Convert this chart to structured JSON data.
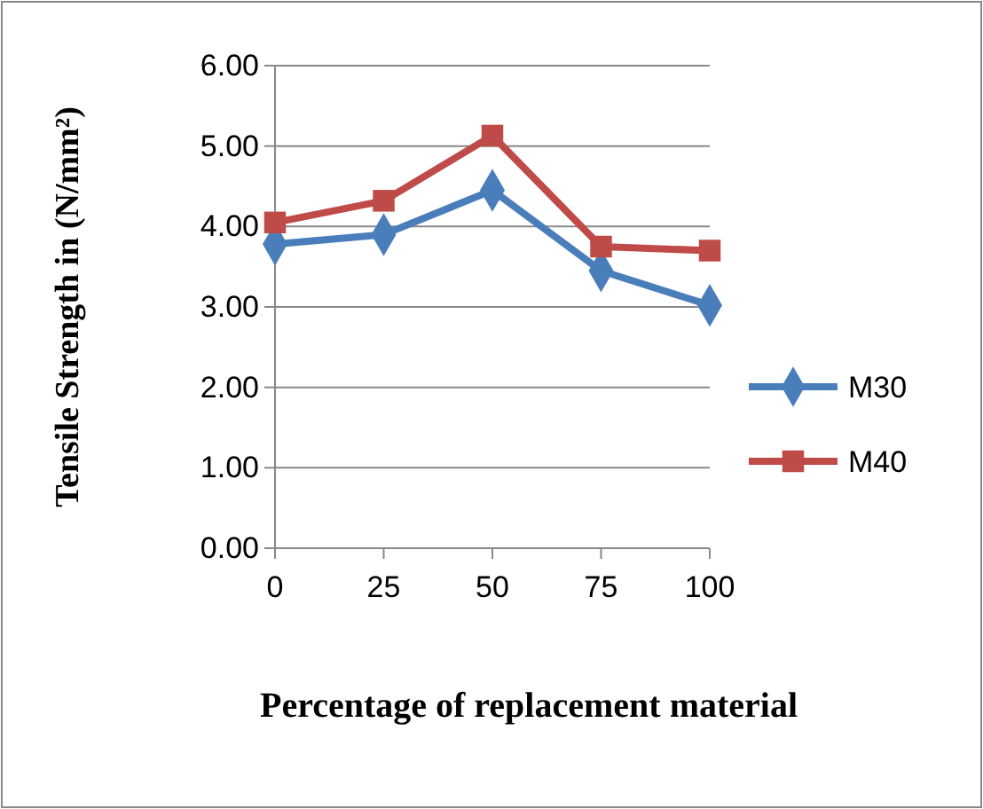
{
  "chart_data": {
    "type": "line",
    "xlabel": "Percentage of replacement material",
    "ylabel": "Tensile Strength in (N/mm²)",
    "x": [
      0,
      25,
      50,
      75,
      100
    ],
    "xlim": [
      0,
      100
    ],
    "xticks": [
      0,
      25,
      50,
      75,
      100
    ],
    "ylim": [
      0,
      6
    ],
    "yticks": [
      {
        "value": 0,
        "label": "0.00"
      },
      {
        "value": 1,
        "label": "1.00"
      },
      {
        "value": 2,
        "label": "2.00"
      },
      {
        "value": 3,
        "label": "3.00"
      },
      {
        "value": 4,
        "label": "4.00"
      },
      {
        "value": 5,
        "label": "5.00"
      },
      {
        "value": 6,
        "label": "6.00"
      }
    ],
    "grid": "y",
    "legend": "right",
    "line_style": "solid",
    "series": [
      {
        "name": "M30",
        "color": "#4a7ebb",
        "marker": "diamond",
        "values": [
          3.78,
          3.9,
          4.45,
          3.45,
          3.02
        ]
      },
      {
        "name": "M40",
        "color": "#be4b48",
        "marker": "square",
        "values": [
          4.05,
          4.32,
          5.13,
          3.75,
          3.7
        ]
      }
    ]
  }
}
